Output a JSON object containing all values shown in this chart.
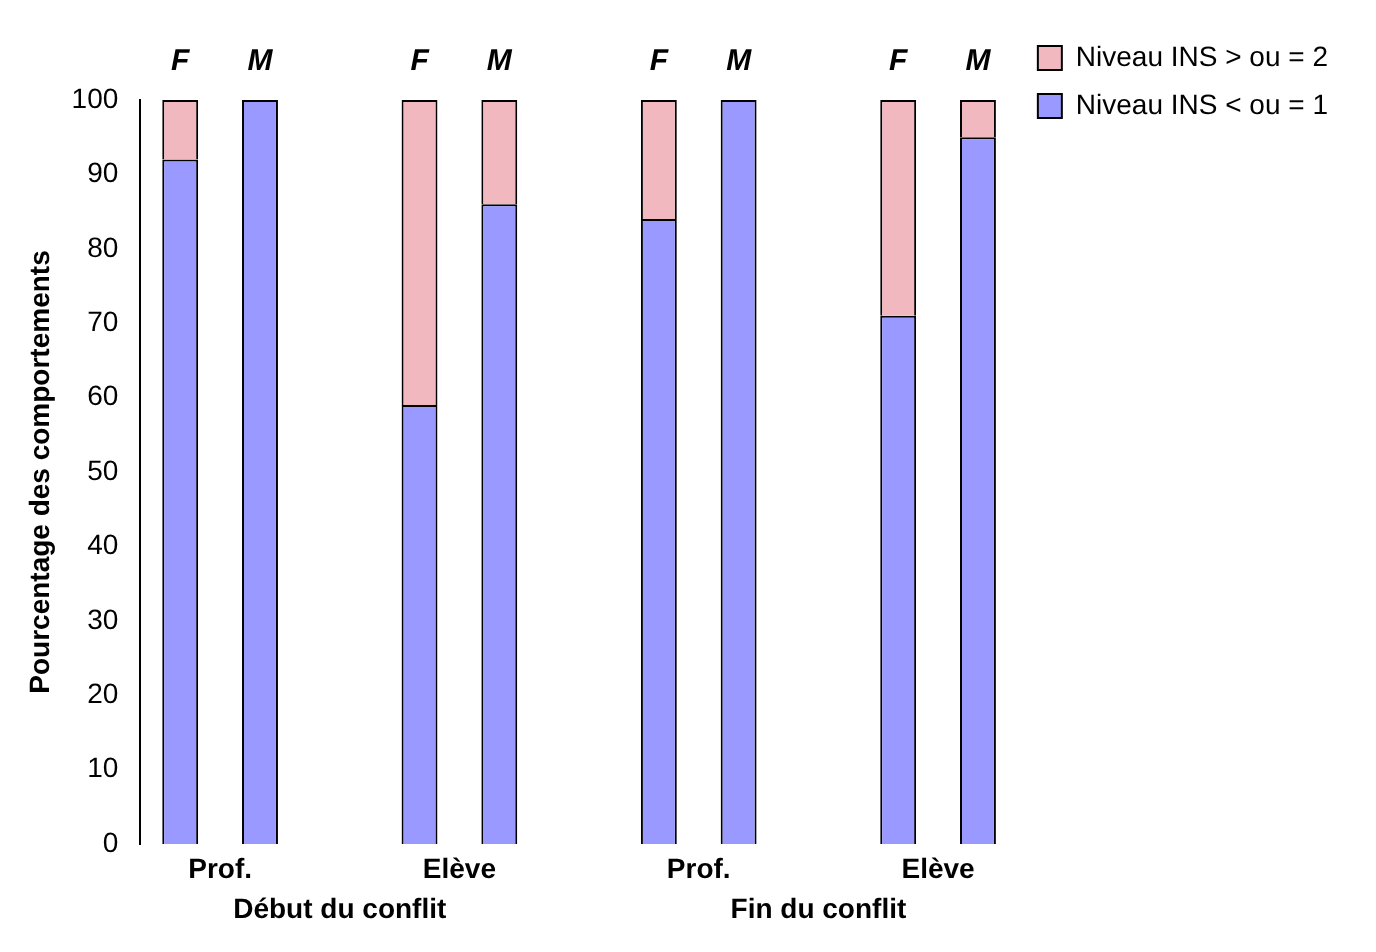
{
  "chart_data": {
    "type": "bar",
    "stacked": true,
    "ylabel": "Pourcentage des comportements",
    "categories": [
      "F",
      "M",
      null,
      "F",
      "M",
      null,
      "F",
      "M",
      null,
      "F",
      "M"
    ],
    "series": [
      {
        "name": "Niveau INS < ou = 1",
        "color": "#9999ff",
        "values": [
          92,
          100,
          null,
          59,
          86,
          null,
          84,
          100,
          null,
          71,
          95
        ]
      },
      {
        "name": "Niveau INS > ou = 2",
        "color": "#f2b8c0",
        "values": [
          8,
          0,
          null,
          41,
          14,
          null,
          16,
          0,
          null,
          29,
          5
        ]
      }
    ],
    "ylim": [
      0,
      100
    ],
    "yticks": [
      0,
      10,
      20,
      30,
      40,
      50,
      60,
      70,
      80,
      90,
      100
    ],
    "grid": false,
    "legend": "right",
    "annotations": [
      "Prof.",
      "Elève",
      "Prof.",
      "Elève",
      "Début du conflit",
      "Fin du conflit"
    ]
  }
}
